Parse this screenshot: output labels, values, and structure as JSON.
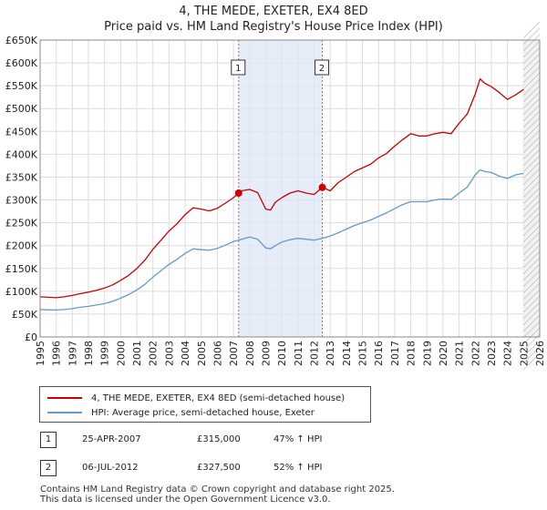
{
  "chart_data": {
    "type": "line",
    "title": "4, THE MEDE, EXETER, EX4 8ED",
    "subtitle": "Price paid vs. HM Land Registry's House Price Index (HPI)",
    "x_range": [
      1995,
      2026
    ],
    "ylim": [
      0,
      650000
    ],
    "y_ticks": [
      0,
      50000,
      100000,
      150000,
      200000,
      250000,
      300000,
      350000,
      400000,
      450000,
      500000,
      550000,
      600000,
      650000
    ],
    "y_tick_labels": [
      "£0",
      "£50K",
      "£100K",
      "£150K",
      "£200K",
      "£250K",
      "£300K",
      "£350K",
      "£400K",
      "£450K",
      "£500K",
      "£550K",
      "£600K",
      "£650K"
    ],
    "x_ticks": [
      1995,
      1996,
      1997,
      1998,
      1999,
      2000,
      2001,
      2002,
      2003,
      2004,
      2005,
      2006,
      2007,
      2008,
      2009,
      2010,
      2011,
      2012,
      2013,
      2014,
      2015,
      2016,
      2017,
      2018,
      2019,
      2020,
      2021,
      2022,
      2023,
      2024,
      2025,
      2026
    ],
    "x_tick_labels": [
      "1995",
      "1996",
      "1997",
      "1998",
      "1999",
      "2000",
      "2001",
      "2002",
      "2003",
      "2004",
      "2005",
      "2006",
      "2007",
      "2008",
      "2009",
      "2010",
      "2011",
      "2012",
      "2013",
      "2014",
      "2015",
      "2016",
      "2017",
      "2018",
      "2019",
      "2020",
      "2021",
      "2022",
      "2023",
      "2024",
      "2025",
      "2026"
    ],
    "grid": true,
    "series": [
      {
        "name": "4, THE MEDE, EXETER, EX4 8ED (semi-detached house)",
        "color": "#cc0000",
        "x": [
          1995.0,
          1995.5,
          1996.0,
          1996.5,
          1997.0,
          1997.5,
          1998.0,
          1998.5,
          1999.0,
          1999.5,
          2000.0,
          2000.5,
          2001.0,
          2001.5,
          2002.0,
          2002.5,
          2003.0,
          2003.5,
          2004.0,
          2004.5,
          2005.0,
          2005.5,
          2006.0,
          2006.5,
          2007.0,
          2007.32,
          2007.5,
          2008.0,
          2008.5,
          2009.0,
          2009.3,
          2009.6,
          2010.0,
          2010.5,
          2011.0,
          2011.5,
          2012.0,
          2012.51,
          2013.0,
          2013.5,
          2014.0,
          2014.5,
          2015.0,
          2015.5,
          2016.0,
          2016.5,
          2017.0,
          2017.5,
          2018.0,
          2018.5,
          2019.0,
          2019.5,
          2020.0,
          2020.5,
          2021.0,
          2021.5,
          2022.0,
          2022.3,
          2022.6,
          2023.0,
          2023.5,
          2024.0,
          2024.5,
          2025.0
        ],
        "values": [
          88000,
          87000,
          86000,
          88000,
          91000,
          95000,
          98000,
          102000,
          107000,
          114000,
          124000,
          135000,
          150000,
          168000,
          192000,
          212000,
          232000,
          248000,
          268000,
          283000,
          280000,
          276000,
          282000,
          293000,
          305000,
          315000,
          320000,
          323000,
          316000,
          280000,
          278000,
          295000,
          305000,
          315000,
          320000,
          315000,
          312000,
          327500,
          320000,
          338000,
          350000,
          362000,
          370000,
          378000,
          392000,
          402000,
          418000,
          432000,
          445000,
          440000,
          440000,
          445000,
          448000,
          445000,
          468000,
          488000,
          532000,
          565000,
          555000,
          548000,
          535000,
          520000,
          530000,
          542000
        ]
      },
      {
        "name": "HPI: Average price, semi-detached house, Exeter",
        "color": "#6699cc",
        "x": [
          1995.0,
          1995.5,
          1996.0,
          1996.5,
          1997.0,
          1997.5,
          1998.0,
          1998.5,
          1999.0,
          1999.5,
          2000.0,
          2000.5,
          2001.0,
          2001.5,
          2002.0,
          2002.5,
          2003.0,
          2003.5,
          2004.0,
          2004.5,
          2005.0,
          2005.5,
          2006.0,
          2006.5,
          2007.0,
          2007.5,
          2008.0,
          2008.5,
          2009.0,
          2009.3,
          2009.6,
          2010.0,
          2010.5,
          2011.0,
          2011.5,
          2012.0,
          2012.5,
          2013.0,
          2013.5,
          2014.0,
          2014.5,
          2015.0,
          2015.5,
          2016.0,
          2016.5,
          2017.0,
          2017.5,
          2018.0,
          2018.5,
          2019.0,
          2019.5,
          2020.0,
          2020.5,
          2021.0,
          2021.5,
          2022.0,
          2022.3,
          2022.6,
          2023.0,
          2023.5,
          2024.0,
          2024.5,
          2025.0
        ],
        "values": [
          60000,
          59500,
          59000,
          60000,
          62000,
          65000,
          67000,
          70000,
          73000,
          78000,
          85000,
          93000,
          103000,
          115000,
          131000,
          145000,
          159000,
          170000,
          183000,
          193000,
          191000,
          190000,
          194000,
          201000,
          209000,
          214000,
          219000,
          214000,
          195000,
          193000,
          200000,
          208000,
          213000,
          216000,
          214000,
          212000,
          216000,
          221000,
          228000,
          236000,
          244000,
          250000,
          256000,
          264000,
          272000,
          281000,
          290000,
          296000,
          296000,
          296000,
          300000,
          302000,
          301000,
          315000,
          328000,
          355000,
          366000,
          362000,
          360000,
          352000,
          347000,
          355000,
          358000
        ]
      }
    ],
    "shaded_region": [
      2007.32,
      2012.51
    ],
    "future_region_start": 2025.0,
    "markers": [
      {
        "label": "1",
        "x": 2007.32,
        "value": 315000
      },
      {
        "label": "2",
        "x": 2012.51,
        "value": 327500
      }
    ]
  },
  "legend": {
    "property_label": "4, THE MEDE, EXETER, EX4 8ED (semi-detached house)",
    "hpi_label": "HPI: Average price, semi-detached house, Exeter",
    "property_color": "#cc0000",
    "hpi_color": "#6699cc"
  },
  "transactions": [
    {
      "num": "1",
      "date": "25-APR-2007",
      "price": "£315,000",
      "hpi": "47% ↑ HPI"
    },
    {
      "num": "2",
      "date": "06-JUL-2012",
      "price": "£327,500",
      "hpi": "52% ↑ HPI"
    }
  ],
  "footer": {
    "line1": "Contains HM Land Registry data © Crown copyright and database right 2025.",
    "line2": "This data is licensed under the Open Government Licence v3.0."
  }
}
